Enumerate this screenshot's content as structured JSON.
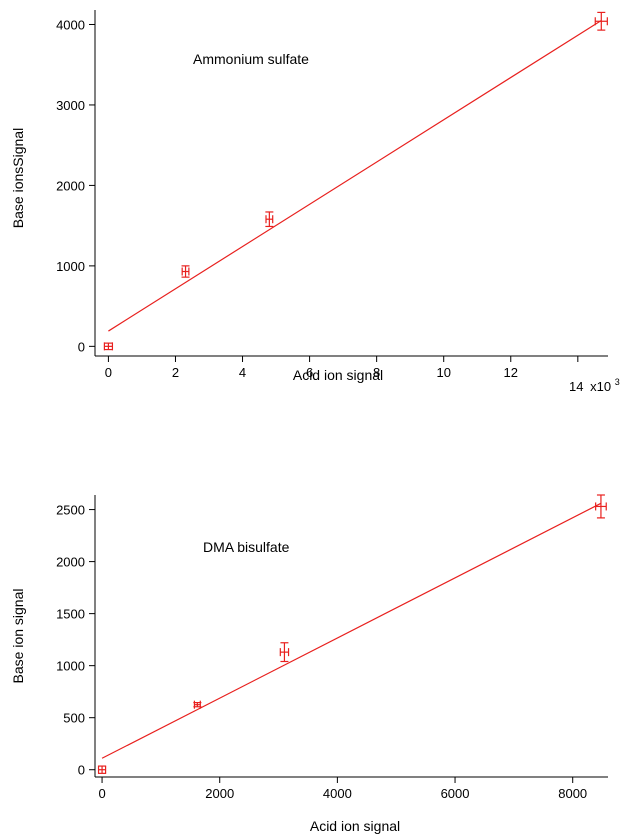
{
  "colors": {
    "series": "#e8201e",
    "axis": "#000000"
  },
  "chart_data": [
    {
      "type": "scatter",
      "annotation": "Ammonium sulfate",
      "xlabel": "Acid ion signal",
      "ylabel": "Base ionsSignal",
      "x_multiplier_label": "x10",
      "x_multiplier_exp": "3",
      "xlim": [
        -0.4,
        14.9
      ],
      "ylim": [
        -120,
        4180
      ],
      "xticks": [
        0,
        2,
        4,
        6,
        8,
        10,
        12,
        14
      ],
      "xtick_labels": [
        "0",
        "2",
        "4",
        "6",
        "8",
        "10",
        "12",
        "14"
      ],
      "yticks": [
        0,
        1000,
        2000,
        3000,
        4000
      ],
      "ytick_labels": [
        "0",
        "1000",
        "2000",
        "3000",
        "4000"
      ],
      "points": [
        {
          "x": 0.0,
          "y": 0,
          "xerr": 0.12,
          "yerr": 40
        },
        {
          "x": 2.3,
          "y": 930,
          "xerr": 0.1,
          "yerr": 70
        },
        {
          "x": 4.8,
          "y": 1580,
          "xerr": 0.1,
          "yerr": 90
        },
        {
          "x": 14.7,
          "y": 4040,
          "xerr": 0.18,
          "yerr": 110
        }
      ],
      "fit": {
        "x": [
          0.0,
          14.7
        ],
        "y": [
          190,
          4050
        ]
      },
      "grid": false
    },
    {
      "type": "scatter",
      "annotation": "DMA bisulfate",
      "xlabel": "Acid ion signal",
      "ylabel": "Base ion signal",
      "xlim": [
        -120,
        8600
      ],
      "ylim": [
        -70,
        2640
      ],
      "xticks": [
        0,
        2000,
        4000,
        6000,
        8000
      ],
      "xtick_labels": [
        "0",
        "2000",
        "4000",
        "6000",
        "8000"
      ],
      "yticks": [
        0,
        500,
        1000,
        1500,
        2000,
        2500
      ],
      "ytick_labels": [
        "0",
        "500",
        "1000",
        "1500",
        "2000",
        "2500"
      ],
      "points": [
        {
          "x": 0,
          "y": 0,
          "xerr": 60,
          "yerr": 35
        },
        {
          "x": 1620,
          "y": 625,
          "xerr": 50,
          "yerr": 20
        },
        {
          "x": 3100,
          "y": 1130,
          "xerr": 70,
          "yerr": 90
        },
        {
          "x": 8480,
          "y": 2530,
          "xerr": 90,
          "yerr": 110
        }
      ],
      "fit": {
        "x": [
          0,
          8480
        ],
        "y": [
          110,
          2560
        ]
      },
      "grid": false
    }
  ]
}
